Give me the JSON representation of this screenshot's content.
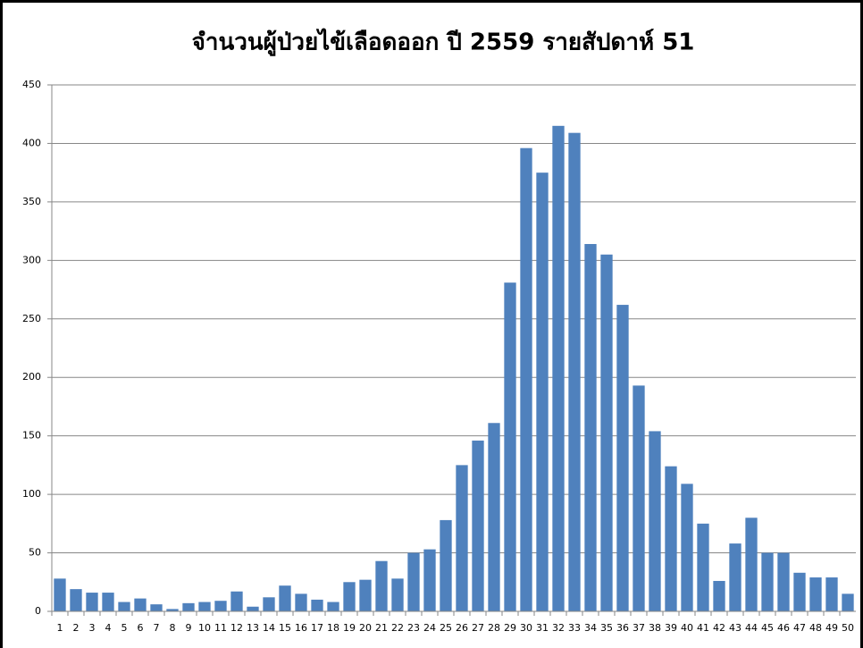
{
  "chart_data": {
    "type": "bar",
    "title": "จำนวนผู้ป่วยไข้เลือดออก ปี 2559 รายสัปดาห์ 51",
    "categories": [
      1,
      2,
      3,
      4,
      5,
      6,
      7,
      8,
      9,
      10,
      11,
      12,
      13,
      14,
      15,
      16,
      17,
      18,
      19,
      20,
      21,
      22,
      23,
      24,
      25,
      26,
      27,
      28,
      29,
      30,
      31,
      32,
      33,
      34,
      35,
      36,
      37,
      38,
      39,
      40,
      41,
      42,
      43,
      44,
      45,
      46,
      47,
      48,
      49,
      50
    ],
    "values": [
      28,
      19,
      16,
      16,
      8,
      11,
      6,
      2,
      7,
      8,
      9,
      17,
      4,
      12,
      22,
      15,
      10,
      8,
      25,
      27,
      43,
      28,
      50,
      53,
      78,
      125,
      146,
      161,
      281,
      396,
      375,
      415,
      409,
      314,
      305,
      262,
      193,
      154,
      124,
      109,
      75,
      26,
      58,
      80,
      50,
      50,
      33,
      29,
      29,
      15
    ],
    "color": "#4f81bd",
    "ylim": [
      0,
      450
    ],
    "yticks": [
      0,
      50,
      100,
      150,
      200,
      250,
      300,
      350,
      400,
      450
    ],
    "grid": true
  }
}
